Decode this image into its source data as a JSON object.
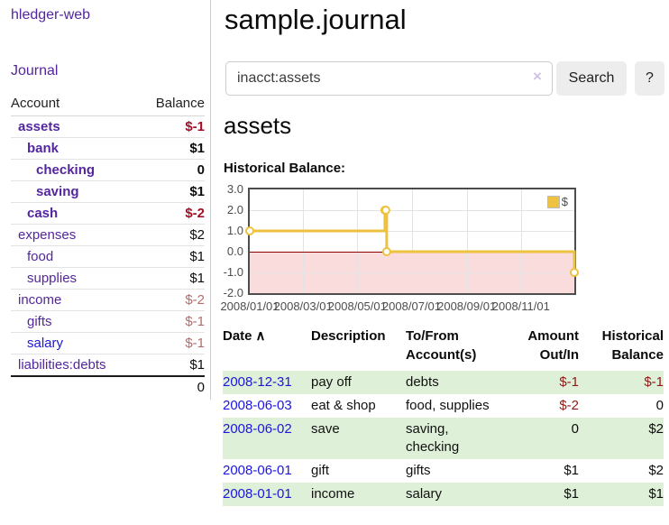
{
  "app": {
    "title": "hledger-web"
  },
  "sidebar": {
    "nav": {
      "journal_label": "Journal"
    },
    "table_headers": {
      "account": "Account",
      "balance": "Balance"
    },
    "accounts": [
      {
        "label": "assets",
        "depth": 1,
        "bold": true,
        "balance": "$-1",
        "style": "neg-strong"
      },
      {
        "label": "bank",
        "depth": 2,
        "bold": true,
        "balance": "$1",
        "style": "pos"
      },
      {
        "label": "checking",
        "depth": 3,
        "bold": true,
        "balance": "0",
        "style": "pos"
      },
      {
        "label": "saving",
        "depth": 3,
        "bold": true,
        "balance": "$1",
        "style": "pos"
      },
      {
        "label": "cash",
        "depth": 2,
        "bold": true,
        "balance": "$-2",
        "style": "neg-strong"
      },
      {
        "label": "expenses",
        "depth": 1,
        "bold": false,
        "balance": "$2",
        "style": "pos"
      },
      {
        "label": "food",
        "depth": 2,
        "bold": false,
        "balance": "$1",
        "style": "pos"
      },
      {
        "label": "supplies",
        "depth": 2,
        "bold": false,
        "balance": "$1",
        "style": "pos"
      },
      {
        "label": "income",
        "depth": 1,
        "bold": false,
        "balance": "$-2",
        "style": "neg-soft"
      },
      {
        "label": "gifts",
        "depth": 2,
        "bold": false,
        "balance": "$-1",
        "style": "neg-soft"
      },
      {
        "label": "salary",
        "depth": 2,
        "bold": false,
        "balance": "$-1",
        "style": "neg-soft",
        "link": "blue"
      },
      {
        "label": "liabilities:debts",
        "depth": 1,
        "bold": false,
        "balance": "$1",
        "style": "pos"
      }
    ],
    "total": "0"
  },
  "main": {
    "title": "sample.journal",
    "search": {
      "value": "inacct:assets",
      "clear_icon": "×",
      "search_label": "Search",
      "help_label": "?"
    },
    "section_heading": "assets",
    "chart_label": "Historical Balance:"
  },
  "chart_data": {
    "type": "line",
    "step": true,
    "title": "Historical Balance",
    "legend": "$",
    "ylim": [
      -2,
      3
    ],
    "yticks": [
      {
        "v": 3,
        "label": "3.0"
      },
      {
        "v": 2,
        "label": "2.0"
      },
      {
        "v": 1,
        "label": "1.0"
      },
      {
        "v": 0,
        "label": "0.0"
      },
      {
        "v": -1,
        "label": "-1.0"
      },
      {
        "v": -2,
        "label": "-2.0"
      }
    ],
    "x_range": [
      "2008-01-01",
      "2008-12-31"
    ],
    "xticks": [
      {
        "date": "2008-01-01",
        "label": "2008/01/01"
      },
      {
        "date": "2008-03-01",
        "label": "2008/03/01"
      },
      {
        "date": "2008-05-01",
        "label": "2008/05/01"
      },
      {
        "date": "2008-07-01",
        "label": "2008/07/01"
      },
      {
        "date": "2008-09-01",
        "label": "2008/09/01"
      },
      {
        "date": "2008-11-01",
        "label": "2008/11/01"
      }
    ],
    "points": [
      {
        "date": "2008-01-01",
        "value": 1
      },
      {
        "date": "2008-06-01",
        "value": 2
      },
      {
        "date": "2008-06-02",
        "value": 2
      },
      {
        "date": "2008-06-03",
        "value": 0
      },
      {
        "date": "2008-12-31",
        "value": -1
      }
    ],
    "negative_region_shaded": true,
    "grid": true,
    "legend_position": "top-right"
  },
  "register": {
    "headers": {
      "date": "Date",
      "sort_icon": "∧",
      "description": "Description",
      "tofrom": "To/From Account(s)",
      "amount": "Amount Out/In",
      "balance": "Historical Balance"
    },
    "rows": [
      {
        "date": "2008-12-31",
        "description": "pay off",
        "tofrom": "debts",
        "amount": "$-1",
        "amount_neg": true,
        "balance": "$-1",
        "balance_neg": true,
        "shaded": true
      },
      {
        "date": "2008-06-03",
        "description": "eat & shop",
        "tofrom": "food, supplies",
        "amount": "$-2",
        "amount_neg": true,
        "balance": "0",
        "balance_neg": false,
        "shaded": false
      },
      {
        "date": "2008-06-02",
        "description": "save",
        "tofrom": "saving,\nchecking",
        "amount": "0",
        "amount_neg": false,
        "balance": "$2",
        "balance_neg": false,
        "shaded": true
      },
      {
        "date": "2008-06-01",
        "description": "gift",
        "tofrom": "gifts",
        "amount": "$1",
        "amount_neg": false,
        "balance": "$2",
        "balance_neg": false,
        "shaded": false
      },
      {
        "date": "2008-01-01",
        "description": "income",
        "tofrom": "salary",
        "amount": "$1",
        "amount_neg": false,
        "balance": "$1",
        "balance_neg": false,
        "shaded": true
      }
    ]
  },
  "colors": {
    "purple": "#54269e",
    "blue": "#1d16dd",
    "neg_strong": "#a30e24",
    "neg_soft": "#b26d6d",
    "table_neg": "#8e1a16",
    "row_green": "#dff0d8",
    "gold": "#edc240",
    "pink": "#fbdcdc",
    "zero_line": "#8b0000",
    "axis_text": "#4d4d4d",
    "grid": "#e3e3e3"
  }
}
